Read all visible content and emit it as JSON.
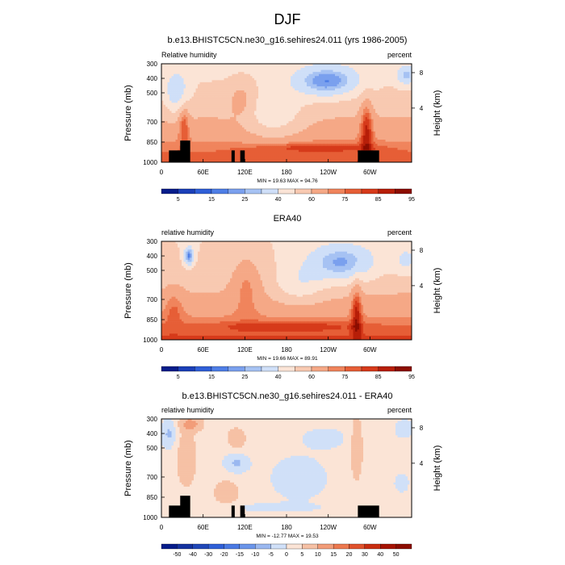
{
  "figure": {
    "title": "DJF"
  },
  "chart_data": [
    {
      "type": "heatmap",
      "title": "b.e13.BHISTC5CN.ne30_g16.sehires24.011 (yrs 1986-2005)",
      "left_label": "Relative humidity",
      "right_label": "percent",
      "ylabel": "Pressure (mb)",
      "ylabel_right": "Height (km)",
      "x_ticks": [
        "0",
        "60E",
        "120E",
        "180",
        "120W",
        "60W"
      ],
      "y_ticks": [
        "300",
        "400",
        "500",
        "700",
        "850",
        "1000"
      ],
      "y_ticks_right": [
        "8",
        "4"
      ],
      "stats": "MIN = 19.63  MAX = 94.76",
      "colorbar_labels": [
        "5",
        "15",
        "25",
        "40",
        "60",
        "75",
        "85",
        "95"
      ],
      "colorbar_colors": [
        "#061c8a",
        "#1b3fb8",
        "#2f5fd7",
        "#4e7ee6",
        "#7aa0ee",
        "#a6c2f3",
        "#cfdff8",
        "#fbe4d6",
        "#f8c9b1",
        "#f5a886",
        "#f0845c",
        "#e65e36",
        "#d63a1a",
        "#b71e08",
        "#8c0d00"
      ],
      "min": 19.63,
      "max": 94.76
    },
    {
      "type": "heatmap",
      "title": "ERA40",
      "left_label": "relative humidity",
      "right_label": "percent",
      "ylabel": "Pressure (mb)",
      "ylabel_right": "Height (km)",
      "x_ticks": [
        "0",
        "60E",
        "120E",
        "180",
        "120W",
        "60W"
      ],
      "y_ticks": [
        "300",
        "400",
        "500",
        "700",
        "850",
        "1000"
      ],
      "y_ticks_right": [
        "8",
        "4"
      ],
      "stats": "MIN = 19.66  MAX = 89.91",
      "colorbar_labels": [
        "5",
        "15",
        "25",
        "40",
        "60",
        "75",
        "85",
        "95"
      ],
      "colorbar_colors": [
        "#061c8a",
        "#1b3fb8",
        "#2f5fd7",
        "#4e7ee6",
        "#7aa0ee",
        "#a6c2f3",
        "#cfdff8",
        "#fbe4d6",
        "#f8c9b1",
        "#f5a886",
        "#f0845c",
        "#e65e36",
        "#d63a1a",
        "#b71e08",
        "#8c0d00"
      ],
      "min": 19.66,
      "max": 89.91
    },
    {
      "type": "heatmap",
      "title": "b.e13.BHISTC5CN.ne30_g16.sehires24.011 - ERA40",
      "left_label": "relative humidity",
      "right_label": "percent",
      "ylabel": "Pressure (mb)",
      "ylabel_right": "Height (km)",
      "x_ticks": [
        "0",
        "60E",
        "120E",
        "180",
        "120W",
        "60W"
      ],
      "y_ticks": [
        "300",
        "400",
        "500",
        "700",
        "850",
        "1000"
      ],
      "y_ticks_right": [
        "8",
        "4"
      ],
      "stats": "MIN = -12.77  MAX = 19.53",
      "colorbar_labels": [
        "-50",
        "-40",
        "-30",
        "-20",
        "-15",
        "-10",
        "-5",
        "0",
        "5",
        "10",
        "15",
        "20",
        "30",
        "40",
        "50"
      ],
      "colorbar_colors": [
        "#061c8a",
        "#14329f",
        "#2047b8",
        "#2f5fd7",
        "#4a79e3",
        "#6a95ea",
        "#9ab8f0",
        "#d0e0f8",
        "#fbe4d6",
        "#f6c1a5",
        "#f29c78",
        "#ec784f",
        "#e0522c",
        "#c82d10",
        "#a51303",
        "#8c0d00"
      ],
      "min": -12.77,
      "max": 19.53
    }
  ]
}
